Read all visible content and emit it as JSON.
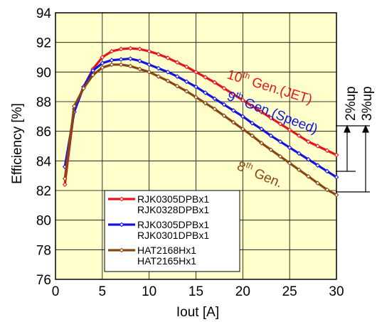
{
  "chart_data": {
    "type": "line",
    "xlabel": "Iout [A]",
    "ylabel": "Efficiency [%]",
    "xlim": [
      0,
      30
    ],
    "ylim": [
      76,
      94
    ],
    "x_ticks": [
      "0",
      "5",
      "10",
      "15",
      "20",
      "25",
      "30"
    ],
    "y_ticks": [
      "76",
      "78",
      "80",
      "82",
      "84",
      "86",
      "88",
      "90",
      "92",
      "94"
    ],
    "grid": true,
    "plot_background": "#ffffcc",
    "legend_position": "bottom-left",
    "series": [
      {
        "legend_line1": "RJK0305DPBx1",
        "legend_line2": "RJK0328DPBx1",
        "color": "#e8141b",
        "x": [
          1,
          2,
          3,
          4,
          5,
          6,
          7,
          8,
          9,
          10,
          11,
          12,
          13,
          14,
          15,
          16,
          17,
          18,
          19,
          20,
          21,
          22,
          23,
          24,
          25,
          26,
          27,
          28,
          29,
          30
        ],
        "y": [
          82.4,
          87.5,
          89.0,
          90.2,
          91.0,
          91.4,
          91.55,
          91.6,
          91.55,
          91.4,
          91.2,
          90.95,
          90.65,
          90.35,
          90.0,
          89.65,
          89.3,
          88.9,
          88.5,
          88.1,
          87.7,
          87.3,
          86.9,
          86.5,
          86.1,
          85.7,
          85.3,
          85.0,
          84.7,
          84.4
        ]
      },
      {
        "legend_line1": "RJK0305DPBx1",
        "legend_line2": "RJK0301DPBx1",
        "color": "#1414e0",
        "x": [
          1,
          2,
          3,
          4,
          5,
          6,
          7,
          8,
          9,
          10,
          11,
          12,
          13,
          14,
          15,
          16,
          17,
          18,
          19,
          20,
          21,
          22,
          23,
          24,
          25,
          26,
          27,
          28,
          29,
          30
        ],
        "y": [
          83.6,
          87.3,
          89.0,
          90.1,
          90.6,
          90.8,
          90.85,
          90.9,
          90.75,
          90.5,
          90.25,
          90.0,
          89.7,
          89.35,
          89.0,
          88.6,
          88.2,
          87.8,
          87.4,
          87.0,
          86.55,
          86.15,
          85.7,
          85.3,
          84.9,
          84.5,
          84.1,
          83.7,
          83.3,
          82.9
        ]
      },
      {
        "legend_line1": "HAT2168Hx1",
        "legend_line2": "HAT2165Hx1",
        "color": "#8b4513",
        "x": [
          1,
          2,
          3,
          4,
          5,
          6,
          7,
          8,
          9,
          10,
          11,
          12,
          13,
          14,
          15,
          16,
          17,
          18,
          19,
          20,
          21,
          22,
          23,
          24,
          25,
          26,
          27,
          28,
          29,
          30
        ],
        "y": [
          82.8,
          87.7,
          88.9,
          89.8,
          90.3,
          90.5,
          90.5,
          90.4,
          90.2,
          90.0,
          89.7,
          89.4,
          89.05,
          88.7,
          88.3,
          87.9,
          87.5,
          87.05,
          86.6,
          86.15,
          85.7,
          85.2,
          84.75,
          84.3,
          83.85,
          83.4,
          82.95,
          82.5,
          82.05,
          81.7
        ]
      }
    ],
    "annotations": {
      "gen10": {
        "pre": "10",
        "sup": "th",
        "post": " Gen.(JET)",
        "color": "#e8141b"
      },
      "gen9": {
        "pre": "9",
        "sup": "th",
        "post": " Gen.(Speed)",
        "color": "#1414e0"
      },
      "gen8": {
        "pre": "8",
        "sup": "th",
        "post": " Gen.",
        "color": "#8b4513"
      },
      "up2": "2%up",
      "up3": "3%up"
    }
  }
}
